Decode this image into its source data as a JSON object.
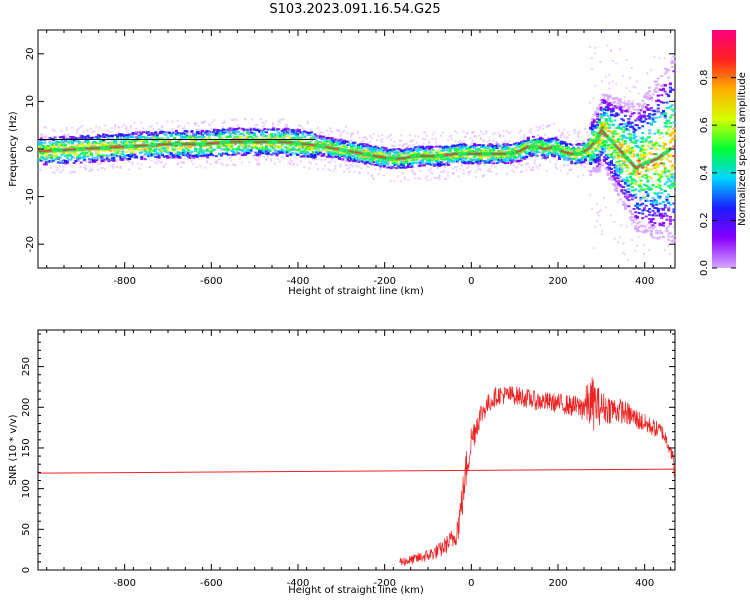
{
  "figure": {
    "title": "S103.2023.091.16.54.G25"
  },
  "chart_data": [
    {
      "type": "heatmap",
      "xlabel": "Height of straight line (km)",
      "ylabel": "Frequency (Hz)",
      "xlim": [
        -1000,
        470
      ],
      "ylim": [
        -25,
        25
      ],
      "x_ticks": [
        -800,
        -600,
        -400,
        -200,
        0,
        200,
        400
      ],
      "y_ticks": [
        -20,
        -10,
        0,
        10,
        20
      ],
      "reference_line": {
        "x": [
          -1000,
          -360
        ],
        "y": 2
      },
      "ridge": {
        "x": [
          -1000,
          -900,
          -800,
          -700,
          -620,
          -560,
          -500,
          -440,
          -380,
          -340,
          -310,
          -280,
          -250,
          -220,
          -190,
          -160,
          -130,
          -100,
          -70,
          -40,
          -10,
          20,
          50,
          80,
          110,
          130,
          150,
          170,
          190,
          210,
          230,
          250,
          270,
          290,
          300,
          320,
          340,
          360,
          380,
          400,
          430,
          460
        ],
        "y": [
          -0.5,
          0,
          0.5,
          1,
          1,
          1.5,
          1.5,
          1.5,
          1,
          0.5,
          0,
          -0.5,
          -1,
          -1.5,
          -2,
          -2,
          -1.5,
          -1.5,
          -1.5,
          -1,
          -1,
          -1,
          -1,
          -1,
          -0.5,
          0.5,
          0.5,
          0,
          0.5,
          -0.5,
          -1,
          -1,
          0,
          2,
          4,
          2,
          0,
          -2,
          -4,
          -3,
          -2,
          0
        ]
      },
      "colorbar": {
        "label": "Normalized spectral amplitude",
        "range": [
          0,
          1
        ],
        "ticks": [
          "0.0",
          "0.2",
          "0.4",
          "0.6",
          "0.8"
        ],
        "colors": [
          "#d7a8ff",
          "#8800ff",
          "#1a1aff",
          "#00d4ff",
          "#00ff33",
          "#d6ff00",
          "#ffb000",
          "#ff2020",
          "#ff0080"
        ]
      }
    },
    {
      "type": "line",
      "xlabel": "Height of straight line (km)",
      "ylabel": "SNR (10 * v/v)",
      "xlim": [
        -1000,
        470
      ],
      "ylim": [
        0,
        295
      ],
      "x_ticks": [
        -800,
        -600,
        -400,
        -200,
        0,
        200,
        400
      ],
      "y_ticks": [
        0,
        50,
        100,
        150,
        200,
        250
      ],
      "series_color": "#ee2222",
      "trend_line": {
        "x": [
          -1000,
          470
        ],
        "y": [
          119,
          124
        ]
      },
      "envelope": {
        "x": [
          -165,
          -140,
          -100,
          -70,
          -50,
          -40,
          -30,
          -20,
          -10,
          0,
          10,
          20,
          40,
          60,
          100,
          150,
          200,
          250,
          280,
          300,
          350,
          400,
          440,
          460,
          470
        ],
        "mean": [
          10,
          12,
          18,
          25,
          35,
          40,
          55,
          90,
          130,
          160,
          175,
          190,
          205,
          215,
          215,
          208,
          205,
          200,
          205,
          200,
          195,
          180,
          170,
          150,
          120
        ],
        "spread": [
          6,
          6,
          8,
          10,
          12,
          15,
          20,
          25,
          25,
          20,
          18,
          15,
          12,
          12,
          12,
          12,
          12,
          14,
          35,
          20,
          15,
          12,
          10,
          10,
          15
        ]
      }
    }
  ]
}
